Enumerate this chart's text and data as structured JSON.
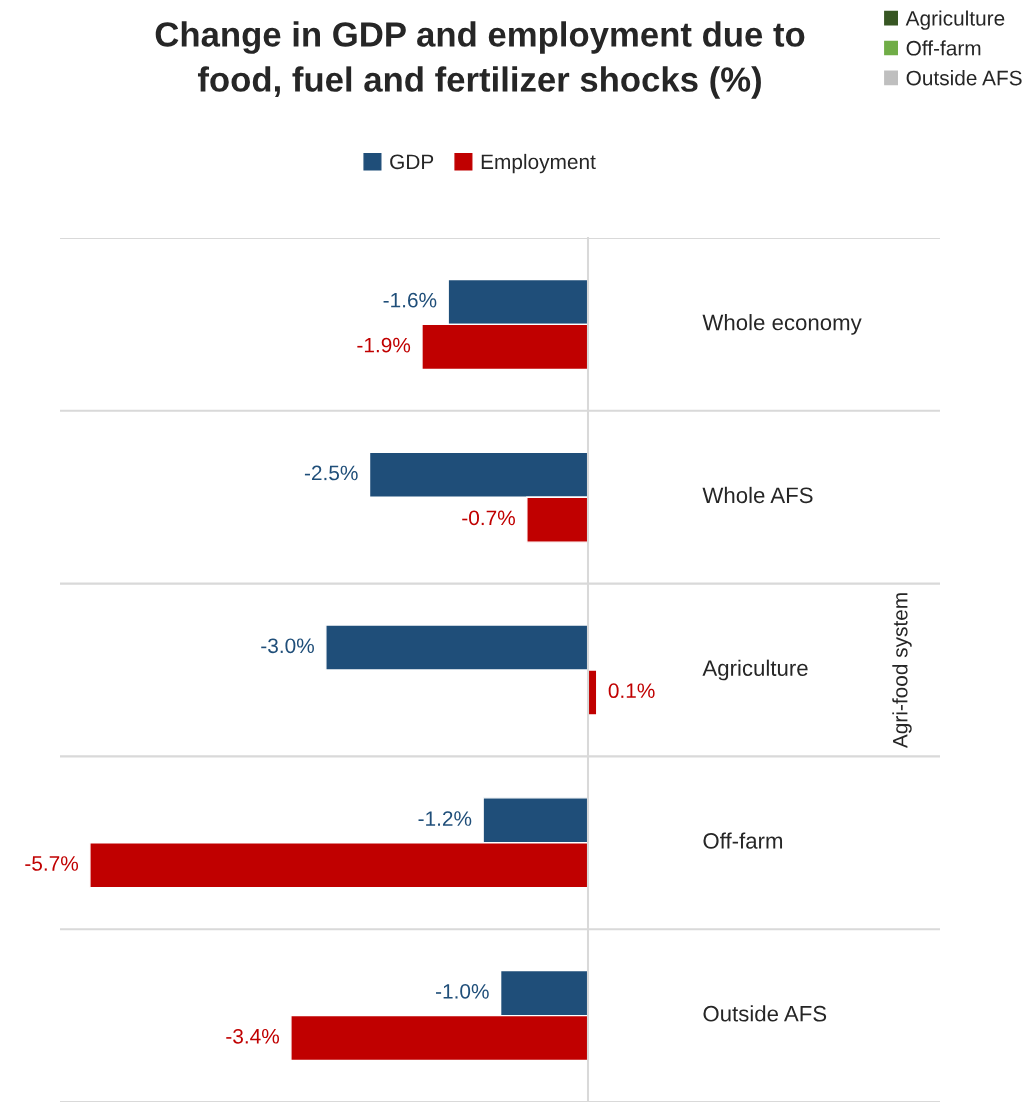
{
  "chart_data": {
    "type": "bar",
    "orientation": "horizontal",
    "title": "Change in GDP and employment due to\nfood, fuel and fertilizer shocks (%)",
    "categories": [
      "Whole economy",
      "Whole AFS",
      "Agriculture",
      "Off-farm",
      "Outside AFS"
    ],
    "series": [
      {
        "name": "GDP",
        "color": "#1f4e79",
        "values": [
          -1.6,
          -2.5,
          -3.0,
          -1.2,
          -1.0
        ],
        "value_labels": [
          "-1.6%",
          "-2.5%",
          "-3.0%",
          "-1.2%",
          "-1.0%"
        ]
      },
      {
        "name": "Employment",
        "color": "#c00000",
        "values": [
          -1.9,
          -0.7,
          0.1,
          -5.7,
          -3.4
        ],
        "value_labels": [
          "-1.9%",
          "-0.7%",
          "0.1%",
          "-5.7%",
          "-3.4%"
        ]
      },
      {
        "name": "Agriculture",
        "color": "#375623",
        "values": [
          null,
          null,
          null,
          null,
          null
        ]
      },
      {
        "name": "Off-farm",
        "color": "#70ad47",
        "values": [
          null,
          null,
          null,
          null,
          null
        ]
      },
      {
        "name": "Outside AFS",
        "color": "#bfbfbf",
        "values": [
          null,
          null,
          null,
          null,
          null
        ]
      }
    ],
    "annotations": [
      "Agri-food system"
    ],
    "legend": "top",
    "grid": "y"
  }
}
